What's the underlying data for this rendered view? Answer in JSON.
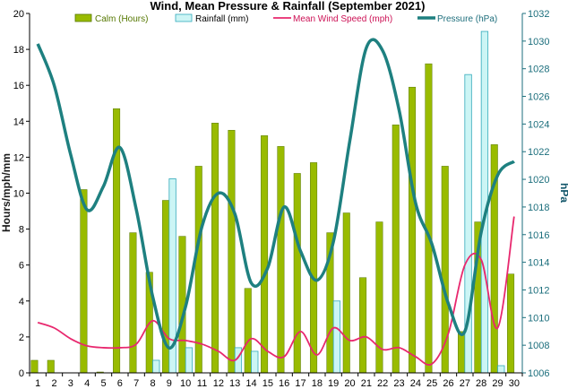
{
  "chart_data": {
    "type": "bar",
    "title": "Wind, Mean Pressure & Rainfall (September 2021)",
    "ylabel_left": "Hours/mph/mm",
    "ylabel_right": "hPa",
    "ylim_left": [
      0,
      20
    ],
    "ylim_right": [
      1006,
      1032
    ],
    "yticks_left": [
      0,
      2,
      4,
      6,
      8,
      10,
      12,
      14,
      16,
      18,
      20
    ],
    "yticks_right": [
      1006,
      1008,
      1010,
      1012,
      1014,
      1016,
      1018,
      1020,
      1022,
      1024,
      1026,
      1028,
      1030,
      1032
    ],
    "categories": [
      "1",
      "2",
      "3",
      "4",
      "5",
      "6",
      "7",
      "8",
      "9",
      "10",
      "11",
      "12",
      "13",
      "14",
      "15",
      "16",
      "17",
      "18",
      "19",
      "20",
      "21",
      "22",
      "23",
      "24",
      "25",
      "26",
      "27",
      "28",
      "29",
      "30"
    ],
    "grid": false,
    "legend_position": "top",
    "series": [
      {
        "name": "Calm (Hours)",
        "type": "bar",
        "axis": "left",
        "color": "#99bb00",
        "values": [
          0.7,
          0.7,
          0,
          10.2,
          0.05,
          14.7,
          7.8,
          5.6,
          9.6,
          7.6,
          11.5,
          13.9,
          13.5,
          4.7,
          13.2,
          12.6,
          11.1,
          11.7,
          7.8,
          8.9,
          5.3,
          8.4,
          13.8,
          15.9,
          17.2,
          11.5,
          2.3,
          8.4,
          12.7,
          5.5
        ]
      },
      {
        "name": "Rainfall (mm)",
        "type": "bar",
        "axis": "left",
        "color": "#ccf5f5",
        "values": [
          0,
          0,
          0,
          0,
          0,
          0,
          0,
          0.7,
          10.8,
          1.4,
          0,
          0,
          1.4,
          1.2,
          0,
          0,
          0,
          0,
          4.0,
          0,
          0,
          0,
          0,
          0,
          0,
          0,
          16.6,
          19.0,
          0.4,
          0
        ]
      },
      {
        "name": "Mean Wind Speed (mph)",
        "type": "line",
        "axis": "left",
        "color": "#e8286e",
        "values": [
          2.8,
          2.5,
          1.9,
          1.5,
          1.4,
          1.4,
          1.6,
          2.9,
          1.9,
          1.8,
          1.6,
          1.2,
          0.7,
          1.9,
          1.2,
          0.9,
          2.3,
          1.0,
          2.5,
          1.8,
          2.0,
          1.3,
          1.4,
          0.9,
          0.5,
          2.2,
          6.0,
          6.3,
          2.5,
          8.7
        ]
      },
      {
        "name": "Pressure (hPa)",
        "type": "line",
        "axis": "right",
        "color": "#1e8080",
        "values": [
          1029.8,
          1026.8,
          1021.8,
          1017.8,
          1019.5,
          1022.3,
          1017.8,
          1011.5,
          1007.8,
          1010.8,
          1016.6,
          1019.0,
          1017.5,
          1012.5,
          1013.6,
          1018.0,
          1014.8,
          1012.7,
          1015.5,
          1022.8,
          1029.5,
          1029.3,
          1025.0,
          1018.3,
          1015.3,
          1011.0,
          1009.0,
          1016.2,
          1020.3,
          1021.3
        ]
      }
    ]
  }
}
